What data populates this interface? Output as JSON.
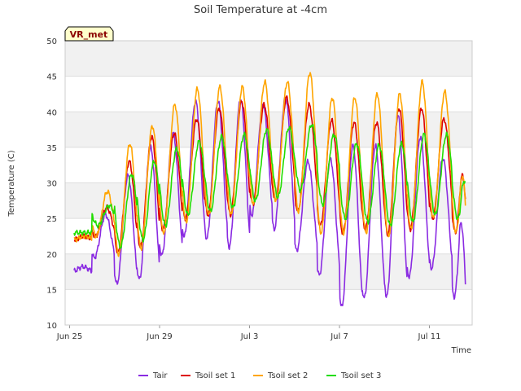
{
  "chart_data": {
    "type": "line",
    "title": "Soil Temperature at -4cm",
    "xlabel": "Time",
    "ylabel": "Temperature (C)",
    "badge": "VR_met",
    "ylim": [
      10,
      50
    ],
    "yticks": [
      10,
      15,
      20,
      25,
      30,
      35,
      40,
      45,
      50
    ],
    "xlim": [
      -0.2,
      17.9
    ],
    "xticks": [
      {
        "t": 0,
        "label": "Jun 25"
      },
      {
        "t": 4,
        "label": "Jun 29"
      },
      {
        "t": 8,
        "label": "Jul 3"
      },
      {
        "t": 12,
        "label": "Jul 7"
      },
      {
        "t": 16,
        "label": "Jul 11"
      }
    ],
    "grid": "horizontal bands",
    "legend_position": "bottom",
    "x_start": 0.2,
    "x_end": 17.6,
    "series": [
      {
        "name": "Tair",
        "color": "#8a2be2",
        "phase": 0.6,
        "days": [
          0,
          1,
          2,
          3,
          4,
          5,
          6,
          7,
          8,
          9,
          10,
          11,
          12,
          13,
          14,
          15,
          16,
          17
        ],
        "min": [
          17.5,
          19.5,
          15.8,
          16.4,
          19.8,
          22.5,
          22.2,
          21.0,
          25.5,
          23.5,
          20.5,
          17.0,
          12.5,
          13.8,
          14.0,
          16.8,
          18.0,
          14.0
        ],
        "max": [
          18.2,
          25.5,
          31.0,
          35.0,
          37.0,
          41.5,
          41.5,
          41.8,
          41.0,
          42.0,
          33.0,
          33.3,
          35.2,
          35.2,
          39.5,
          36.5,
          33.5,
          33.0
        ],
        "end": 16.0
      },
      {
        "name": "Tsoil set 1",
        "color": "#dd0000",
        "phase": 0.65,
        "days": [
          0,
          1,
          2,
          3,
          4,
          5,
          6,
          7,
          8,
          9,
          10,
          11,
          12,
          13,
          14,
          15,
          16,
          17
        ],
        "min": [
          22.0,
          22.5,
          20.2,
          21.0,
          23.5,
          25.0,
          25.5,
          25.5,
          27.0,
          27.5,
          26.0,
          24.0,
          23.0,
          23.5,
          22.8,
          23.5,
          25.0,
          23.0
        ],
        "max": [
          22.5,
          26.5,
          33.0,
          36.5,
          37.0,
          39.0,
          40.5,
          41.5,
          41.0,
          42.0,
          41.0,
          38.8,
          38.5,
          38.5,
          40.5,
          40.5,
          39.0,
          38.8
        ],
        "end": 27.5
      },
      {
        "name": "Tsoil set 2",
        "color": "#ffa500",
        "phase": 0.68,
        "days": [
          0,
          1,
          2,
          3,
          4,
          5,
          6,
          7,
          8,
          9,
          10,
          11,
          12,
          13,
          14,
          15,
          16,
          17
        ],
        "min": [
          22.0,
          22.5,
          20.0,
          20.8,
          23.0,
          24.5,
          25.5,
          25.5,
          27.0,
          27.5,
          26.0,
          23.0,
          23.0,
          23.0,
          22.5,
          23.5,
          25.0,
          23.0
        ],
        "max": [
          22.5,
          28.8,
          35.5,
          38.0,
          41.0,
          43.2,
          43.5,
          43.5,
          44.2,
          44.2,
          45.5,
          42.0,
          42.0,
          42.5,
          42.5,
          44.2,
          42.8,
          42.2
        ],
        "end": 26.8
      },
      {
        "name": "Tsoil set 3",
        "color": "#22dd00",
        "phase": 0.76,
        "days": [
          0,
          1,
          2,
          3,
          4,
          5,
          6,
          7,
          8,
          9,
          10,
          11,
          12,
          13,
          14,
          15,
          16,
          17
        ],
        "min": [
          23.0,
          24.0,
          21.0,
          22.0,
          24.0,
          25.5,
          26.0,
          26.5,
          27.5,
          28.0,
          29.0,
          27.0,
          25.0,
          24.5,
          24.0,
          24.5,
          25.5,
          25.0
        ],
        "max": [
          23.0,
          26.8,
          31.2,
          33.0,
          34.8,
          35.8,
          36.5,
          36.8,
          37.5,
          37.8,
          38.2,
          36.8,
          35.5,
          35.3,
          35.5,
          36.8,
          36.8,
          35.5
        ],
        "end": 30.0
      }
    ]
  }
}
